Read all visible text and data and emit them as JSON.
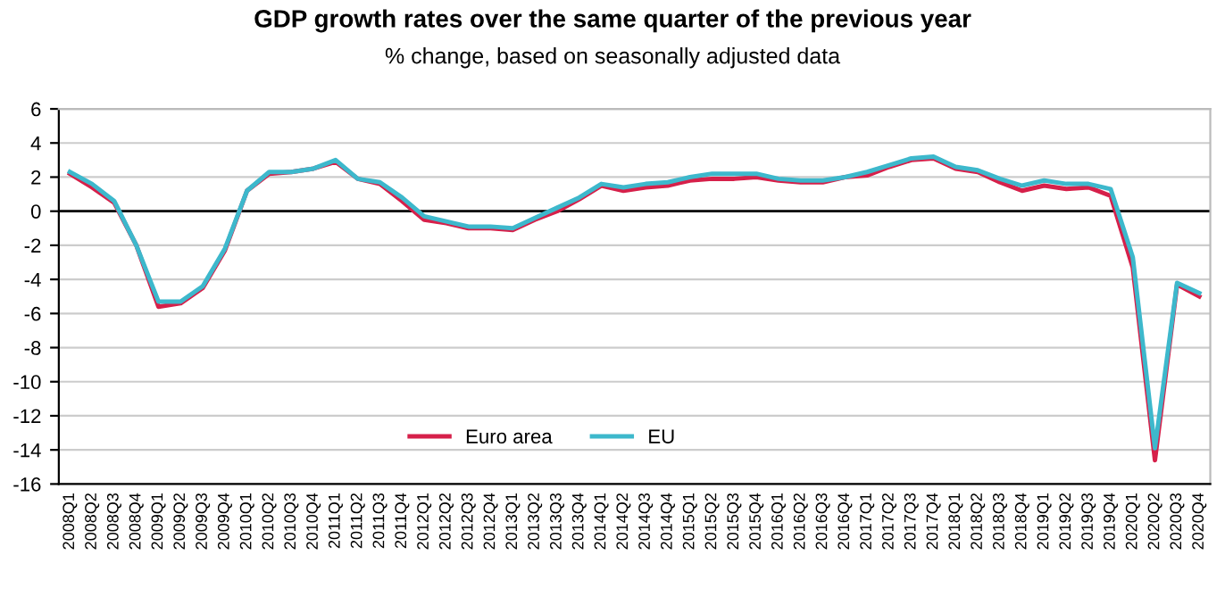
{
  "chart_data": {
    "type": "line",
    "title": "GDP growth rates over the same quarter of the previous year",
    "subtitle": "% change, based on seasonally adjusted data",
    "categories": [
      "2008Q1",
      "2008Q2",
      "2008Q3",
      "2008Q4",
      "2009Q1",
      "2009Q2",
      "2009Q3",
      "2009Q4",
      "2010Q1",
      "2010Q2",
      "2010Q3",
      "2010Q4",
      "2011Q1",
      "2011Q2",
      "2011Q3",
      "2011Q4",
      "2012Q1",
      "2012Q2",
      "2012Q3",
      "2012Q4",
      "2013Q1",
      "2013Q2",
      "2013Q3",
      "2013Q4",
      "2014Q1",
      "2014Q2",
      "2014Q3",
      "2014Q4",
      "2015Q1",
      "2015Q2",
      "2015Q3",
      "2015Q4",
      "2016Q1",
      "2016Q2",
      "2016Q3",
      "2016Q4",
      "2017Q1",
      "2017Q2",
      "2017Q3",
      "2017Q4",
      "2018Q1",
      "2018Q2",
      "2018Q3",
      "2018Q4",
      "2019Q1",
      "2019Q2",
      "2019Q3",
      "2019Q4",
      "2020Q1",
      "2020Q2",
      "2020Q3",
      "2020Q4"
    ],
    "series": [
      {
        "name": "Euro area",
        "color": "#d6204a",
        "values": [
          2.2,
          1.4,
          0.5,
          -2.0,
          -5.6,
          -5.4,
          -4.5,
          -2.3,
          1.2,
          2.2,
          2.3,
          2.5,
          2.9,
          1.9,
          1.6,
          0.6,
          -0.5,
          -0.7,
          -1.0,
          -1.0,
          -1.1,
          -0.5,
          0.0,
          0.7,
          1.5,
          1.2,
          1.4,
          1.5,
          1.8,
          1.9,
          1.9,
          2.0,
          1.8,
          1.7,
          1.7,
          2.0,
          2.1,
          2.6,
          3.0,
          3.1,
          2.5,
          2.3,
          1.7,
          1.2,
          1.5,
          1.3,
          1.4,
          0.9,
          -3.3,
          -14.6,
          -4.3,
          -5.0
        ]
      },
      {
        "name": "EU",
        "color": "#3db8cc",
        "values": [
          2.3,
          1.6,
          0.6,
          -2.0,
          -5.3,
          -5.3,
          -4.4,
          -2.2,
          1.2,
          2.3,
          2.3,
          2.5,
          3.0,
          1.9,
          1.7,
          0.8,
          -0.3,
          -0.6,
          -0.9,
          -0.9,
          -1.0,
          -0.4,
          0.2,
          0.8,
          1.6,
          1.4,
          1.6,
          1.7,
          2.0,
          2.2,
          2.2,
          2.2,
          1.9,
          1.8,
          1.8,
          2.0,
          2.3,
          2.7,
          3.1,
          3.2,
          2.6,
          2.4,
          1.9,
          1.5,
          1.8,
          1.6,
          1.6,
          1.3,
          -2.7,
          -13.9,
          -4.2,
          -4.8
        ]
      }
    ],
    "ylim": [
      -16,
      6
    ],
    "yticks": [
      -16,
      -14,
      -12,
      -10,
      -8,
      -6,
      -4,
      -2,
      0,
      2,
      4,
      6
    ],
    "grid": "y",
    "legend": "bottom",
    "marker": "none",
    "line_style": "solid"
  }
}
